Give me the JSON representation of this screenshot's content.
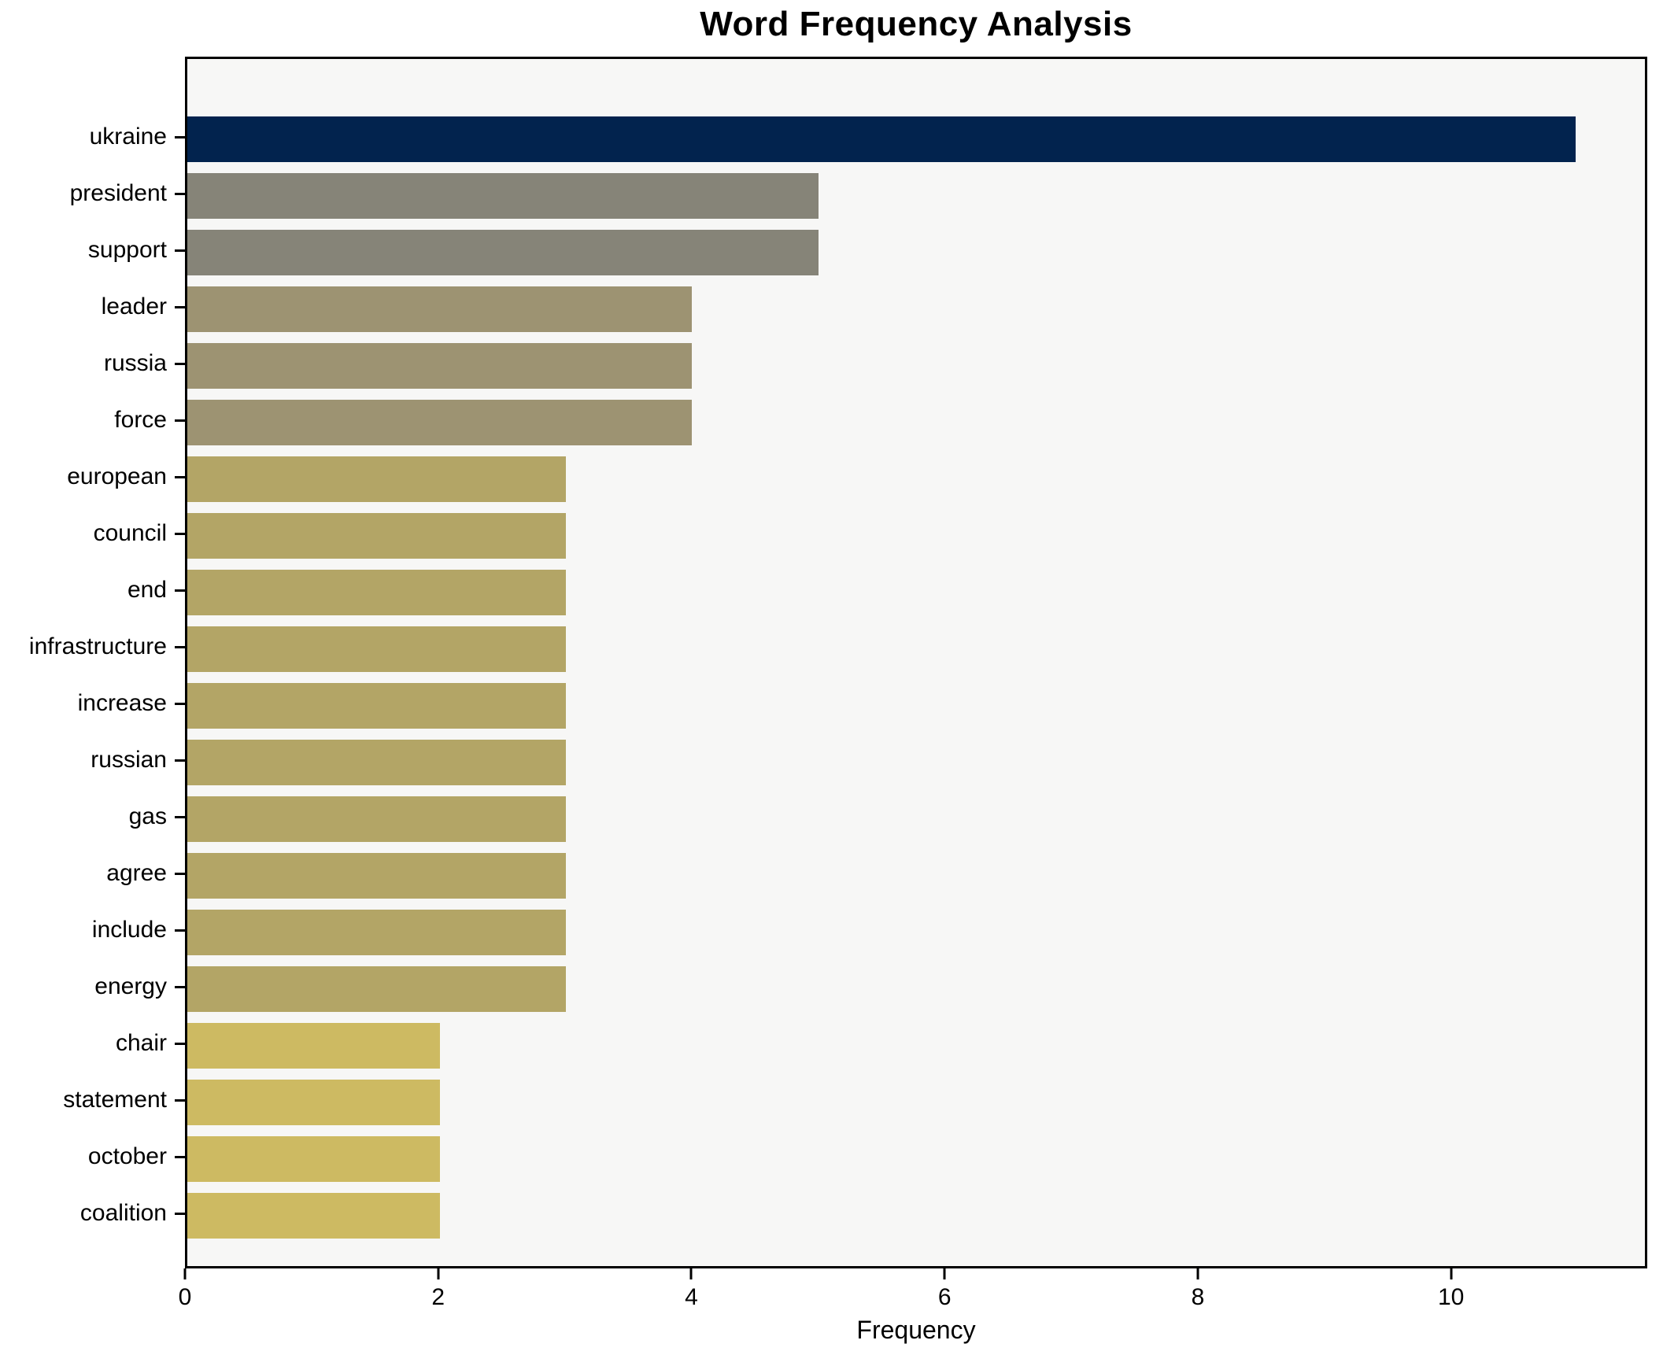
{
  "chart_data": {
    "type": "bar",
    "orientation": "horizontal",
    "title": "Word Frequency Analysis",
    "xlabel": "Frequency",
    "ylabel": "",
    "categories": [
      "ukraine",
      "president",
      "support",
      "leader",
      "russia",
      "force",
      "european",
      "council",
      "end",
      "infrastructure",
      "increase",
      "russian",
      "gas",
      "agree",
      "include",
      "energy",
      "chair",
      "statement",
      "october",
      "coalition"
    ],
    "values": [
      11,
      5,
      5,
      4,
      4,
      4,
      3,
      3,
      3,
      3,
      3,
      3,
      3,
      3,
      3,
      3,
      2,
      2,
      2,
      2
    ],
    "bar_colors": [
      "#02234e",
      "#868478",
      "#868478",
      "#9d9372",
      "#9d9372",
      "#9d9372",
      "#b3a566",
      "#b3a566",
      "#b3a566",
      "#b3a566",
      "#b3a566",
      "#b3a566",
      "#b3a566",
      "#b3a566",
      "#b3a566",
      "#b3a566",
      "#cdba62",
      "#cdba62",
      "#cdba62",
      "#cdba62"
    ],
    "x_ticks": [
      0,
      2,
      4,
      6,
      8,
      10
    ],
    "xlim": [
      0,
      11.55
    ],
    "grid": false,
    "legend": null,
    "plot_background": "#f7f7f6",
    "figure_background": "#ffffff",
    "spine_color": "#000000"
  }
}
